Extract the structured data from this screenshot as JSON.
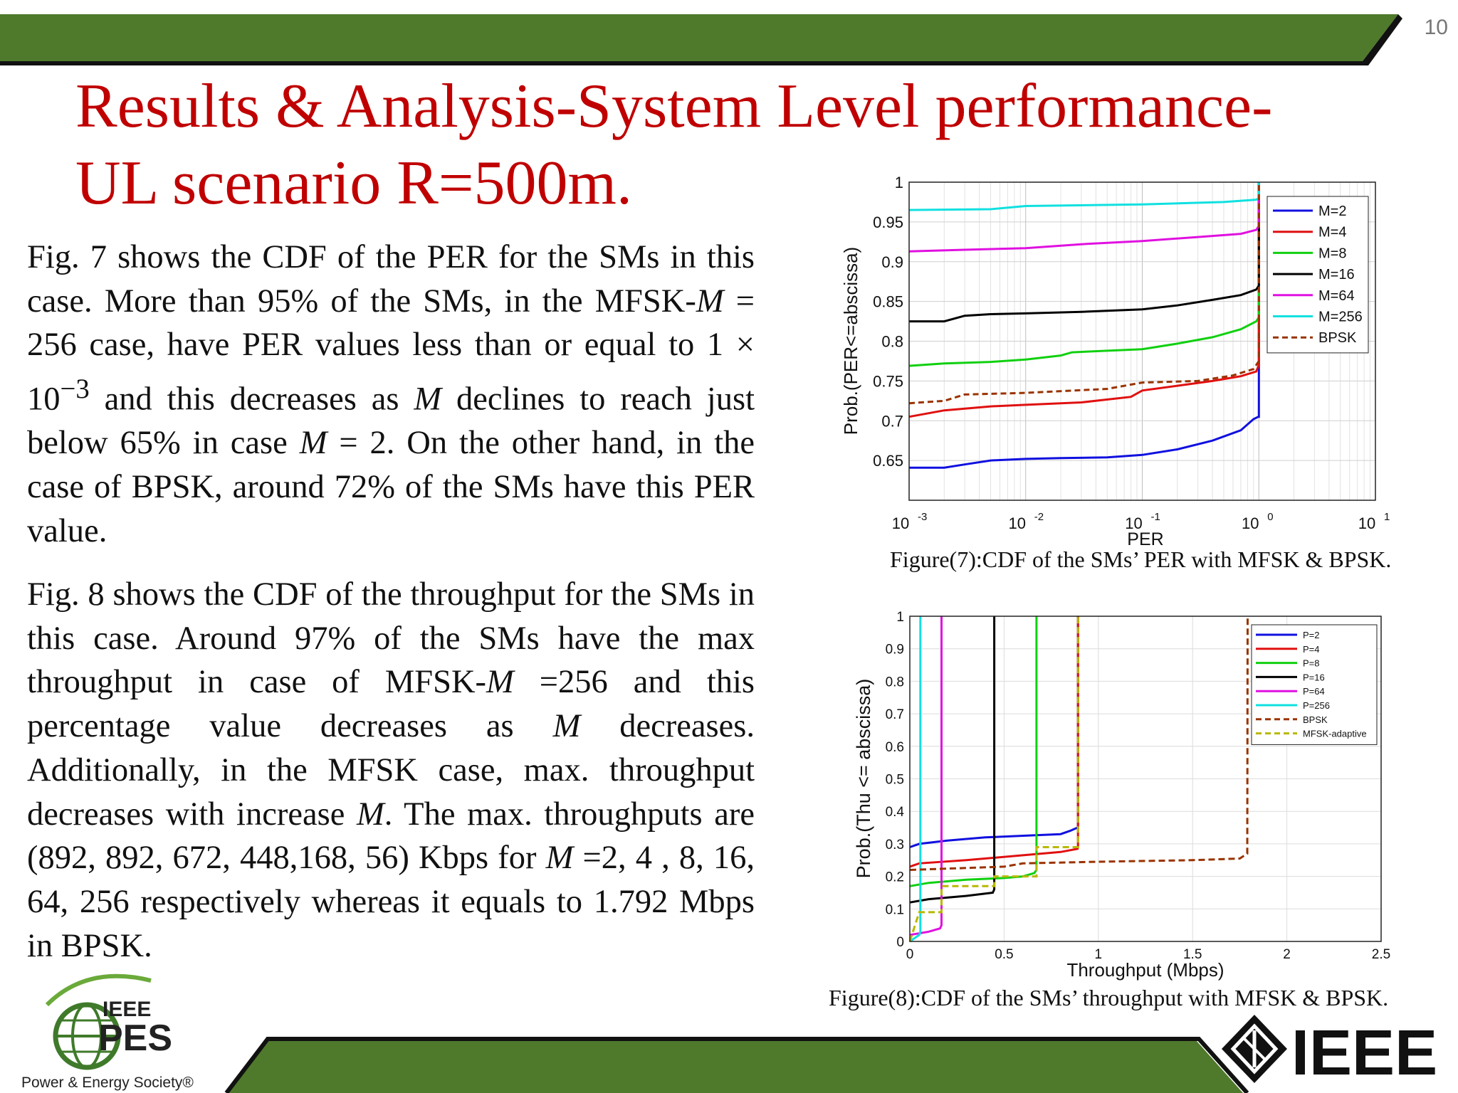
{
  "slide": {
    "page_number": "10",
    "title": "Results & Analysis-System Level performance-\nUL scenario R=500m.",
    "theme_colors": {
      "band_green": "#4f7a2c",
      "title_red": "#c00000"
    }
  },
  "paragraphs": {
    "p1_a": "Fig. 7 shows the CDF of the PER for the SMs in this case. More than 95% of the SMs, in the MFSK-",
    "p1_m1": "M",
    "p1_b": " = 256 case, have PER values less than or equal to 1 × 10",
    "p1_exp": "−3",
    "p1_c": " and this decreases as ",
    "p1_m2": "M",
    "p1_d": " declines to reach just below 65% in case ",
    "p1_m3": "M",
    "p1_e": " = 2. On the other hand, in the case of BPSK, around 72% of the SMs have this PER value.",
    "p2_a": "Fig. 8 shows the CDF of the throughput for the SMs in this case. Around 97% of the SMs have the max throughput in case of MFSK-",
    "p2_m1": "M",
    "p2_b": " =256 and this percentage value decreases as ",
    "p2_m2": "M",
    "p2_c": " decreases. Additionally, in the MFSK case, max. throughput decreases with increase ",
    "p2_m3": "M",
    "p2_d": ". The max. throughputs are (892, 892, 672, 448,168, 56) Kbps for ",
    "p2_m4": "M",
    "p2_e": " =2, 4 , 8, 16, 64, 256 respectively whereas it equals to 1.792 Mbps in  BPSK."
  },
  "captions": {
    "fig7": "Figure(7):CDF of the SMs’ PER with MFSK & BPSK.",
    "fig8": "Figure(8):CDF of the SMs’ throughput with MFSK & BPSK."
  },
  "logos": {
    "pes_top": "IEEE",
    "pes_main": "PES",
    "pes_sub": "Power & Energy Society®",
    "ieee": "IEEE"
  },
  "chart_data": [
    {
      "type": "line",
      "xscale": "log",
      "xlim": [
        0.001,
        10
      ],
      "ylim": [
        0.6,
        1
      ],
      "xlabel": "PER",
      "ylabel": "Prob.(PER<=abscissa)",
      "xtick_labels": [
        {
          "base": "10",
          "exp": "-3"
        },
        {
          "base": "10",
          "exp": "-2"
        },
        {
          "base": "10",
          "exp": "-1"
        },
        {
          "base": "10",
          "exp": "0"
        },
        {
          "base": "10",
          "exp": "1"
        }
      ],
      "yticks": [
        "0.65",
        "0.7",
        "0.75",
        "0.8",
        "0.85",
        "0.9",
        "0.95",
        "1"
      ],
      "grid": true,
      "legend_position": "top-right",
      "series": [
        {
          "name": "M=2",
          "color": "#1010e0",
          "dash": false,
          "points": [
            [
              0.001,
              0.641
            ],
            [
              0.002,
              0.641
            ],
            [
              0.003,
              0.645
            ],
            [
              0.005,
              0.65
            ],
            [
              0.01,
              0.652
            ],
            [
              0.02,
              0.653
            ],
            [
              0.05,
              0.654
            ],
            [
              0.1,
              0.657
            ],
            [
              0.2,
              0.664
            ],
            [
              0.4,
              0.675
            ],
            [
              0.7,
              0.688
            ],
            [
              0.9,
              0.702
            ],
            [
              0.99,
              0.705
            ],
            [
              1,
              0.705
            ],
            [
              1,
              1
            ]
          ]
        },
        {
          "name": "M=4",
          "color": "#e01010",
          "dash": false,
          "points": [
            [
              0.001,
              0.705
            ],
            [
              0.002,
              0.713
            ],
            [
              0.005,
              0.718
            ],
            [
              0.01,
              0.72
            ],
            [
              0.03,
              0.723
            ],
            [
              0.08,
              0.73
            ],
            [
              0.1,
              0.738
            ],
            [
              0.2,
              0.744
            ],
            [
              0.4,
              0.75
            ],
            [
              0.7,
              0.756
            ],
            [
              0.95,
              0.762
            ],
            [
              1,
              0.77
            ],
            [
              1,
              1
            ]
          ]
        },
        {
          "name": "M=8",
          "color": "#10d010",
          "dash": false,
          "points": [
            [
              0.001,
              0.769
            ],
            [
              0.002,
              0.772
            ],
            [
              0.005,
              0.774
            ],
            [
              0.01,
              0.777
            ],
            [
              0.02,
              0.782
            ],
            [
              0.025,
              0.786
            ],
            [
              0.05,
              0.788
            ],
            [
              0.1,
              0.79
            ],
            [
              0.2,
              0.797
            ],
            [
              0.4,
              0.805
            ],
            [
              0.7,
              0.815
            ],
            [
              0.95,
              0.825
            ],
            [
              1,
              0.83
            ],
            [
              1,
              1
            ]
          ]
        },
        {
          "name": "M=16",
          "color": "#000000",
          "dash": false,
          "points": [
            [
              0.001,
              0.825
            ],
            [
              0.002,
              0.825
            ],
            [
              0.003,
              0.832
            ],
            [
              0.005,
              0.834
            ],
            [
              0.01,
              0.835
            ],
            [
              0.03,
              0.837
            ],
            [
              0.1,
              0.84
            ],
            [
              0.2,
              0.845
            ],
            [
              0.4,
              0.852
            ],
            [
              0.7,
              0.858
            ],
            [
              0.95,
              0.865
            ],
            [
              1,
              0.87
            ],
            [
              1,
              1
            ]
          ]
        },
        {
          "name": "M=64",
          "color": "#e010e0",
          "dash": false,
          "points": [
            [
              0.001,
              0.913
            ],
            [
              0.003,
              0.915
            ],
            [
              0.01,
              0.917
            ],
            [
              0.03,
              0.922
            ],
            [
              0.1,
              0.926
            ],
            [
              0.3,
              0.931
            ],
            [
              0.7,
              0.935
            ],
            [
              0.95,
              0.94
            ],
            [
              1,
              0.945
            ],
            [
              1,
              1
            ]
          ]
        },
        {
          "name": "M=256",
          "color": "#10e0e0",
          "dash": false,
          "points": [
            [
              0.001,
              0.965
            ],
            [
              0.005,
              0.966
            ],
            [
              0.01,
              0.97
            ],
            [
              0.1,
              0.972
            ],
            [
              0.5,
              0.975
            ],
            [
              0.95,
              0.978
            ],
            [
              1,
              0.98
            ],
            [
              1,
              1
            ]
          ]
        },
        {
          "name": "BPSK",
          "color": "#993300",
          "dash": true,
          "points": [
            [
              0.001,
              0.722
            ],
            [
              0.002,
              0.725
            ],
            [
              0.003,
              0.733
            ],
            [
              0.01,
              0.735
            ],
            [
              0.05,
              0.74
            ],
            [
              0.1,
              0.748
            ],
            [
              0.3,
              0.75
            ],
            [
              0.6,
              0.757
            ],
            [
              0.9,
              0.765
            ],
            [
              1,
              0.775
            ],
            [
              1,
              1
            ]
          ]
        }
      ]
    },
    {
      "type": "line",
      "xlim": [
        0,
        2.5
      ],
      "ylim": [
        0,
        1
      ],
      "xlabel": "Throughput (Mbps)",
      "ylabel": "Prob.(Thu <= abscissa)",
      "xticks": [
        "0",
        "0.5",
        "1",
        "1.5",
        "2",
        "2.5"
      ],
      "yticks": [
        "0",
        "0.1",
        "0.2",
        "0.3",
        "0.4",
        "0.5",
        "0.6",
        "0.7",
        "0.8",
        "0.9",
        "1"
      ],
      "grid": true,
      "legend_position": "top-right",
      "series": [
        {
          "name": "P=2",
          "color": "#1010e0",
          "dash": false,
          "points": [
            [
              0,
              0.29
            ],
            [
              0.05,
              0.3
            ],
            [
              0.2,
              0.31
            ],
            [
              0.4,
              0.32
            ],
            [
              0.6,
              0.325
            ],
            [
              0.8,
              0.33
            ],
            [
              0.85,
              0.34
            ],
            [
              0.89,
              0.35
            ],
            [
              0.892,
              0.35
            ],
            [
              0.892,
              1
            ]
          ]
        },
        {
          "name": "P=4",
          "color": "#e01010",
          "dash": false,
          "points": [
            [
              0,
              0.23
            ],
            [
              0.05,
              0.24
            ],
            [
              0.3,
              0.25
            ],
            [
              0.6,
              0.265
            ],
            [
              0.8,
              0.275
            ],
            [
              0.89,
              0.285
            ],
            [
              0.892,
              0.29
            ],
            [
              0.892,
              1
            ]
          ]
        },
        {
          "name": "P=8",
          "color": "#10d010",
          "dash": false,
          "points": [
            [
              0,
              0.17
            ],
            [
              0.1,
              0.18
            ],
            [
              0.3,
              0.19
            ],
            [
              0.5,
              0.195
            ],
            [
              0.6,
              0.2
            ],
            [
              0.66,
              0.21
            ],
            [
              0.672,
              0.22
            ],
            [
              0.672,
              1
            ]
          ]
        },
        {
          "name": "P=16",
          "color": "#000000",
          "dash": false,
          "points": [
            [
              0,
              0.12
            ],
            [
              0.1,
              0.13
            ],
            [
              0.3,
              0.14
            ],
            [
              0.44,
              0.15
            ],
            [
              0.448,
              0.16
            ],
            [
              0.448,
              1
            ]
          ]
        },
        {
          "name": "P=64",
          "color": "#e010e0",
          "dash": false,
          "points": [
            [
              0,
              0.02
            ],
            [
              0.1,
              0.03
            ],
            [
              0.16,
              0.04
            ],
            [
              0.168,
              0.05
            ],
            [
              0.168,
              1
            ]
          ]
        },
        {
          "name": "P=256",
          "color": "#10e0e0",
          "dash": false,
          "points": [
            [
              0,
              0.0
            ],
            [
              0.05,
              0.02
            ],
            [
              0.056,
              0.03
            ],
            [
              0.056,
              1
            ]
          ]
        },
        {
          "name": "BPSK",
          "color": "#993300",
          "dash": true,
          "points": [
            [
              0,
              0.22
            ],
            [
              0.5,
              0.23
            ],
            [
              0.6,
              0.24
            ],
            [
              1,
              0.245
            ],
            [
              1.5,
              0.25
            ],
            [
              1.75,
              0.255
            ],
            [
              1.79,
              0.27
            ],
            [
              1.792,
              1
            ]
          ]
        },
        {
          "name": "MFSK-adaptive",
          "color": "#b8b800",
          "dash": true,
          "points": [
            [
              0,
              0.0
            ],
            [
              0.05,
              0.09
            ],
            [
              0.168,
              0.09
            ],
            [
              0.168,
              0.17
            ],
            [
              0.448,
              0.17
            ],
            [
              0.448,
              0.2
            ],
            [
              0.672,
              0.2
            ],
            [
              0.672,
              0.29
            ],
            [
              0.892,
              0.29
            ],
            [
              0.892,
              1
            ]
          ]
        }
      ]
    }
  ]
}
